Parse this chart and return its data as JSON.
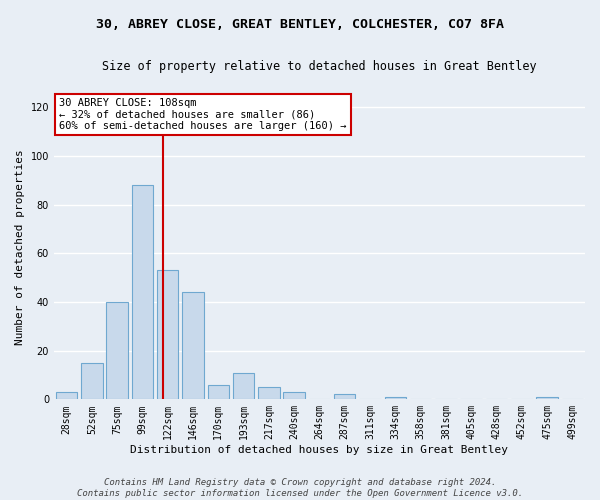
{
  "title1": "30, ABREY CLOSE, GREAT BENTLEY, COLCHESTER, CO7 8FA",
  "title2": "Size of property relative to detached houses in Great Bentley",
  "xlabel": "Distribution of detached houses by size in Great Bentley",
  "ylabel": "Number of detached properties",
  "bins": [
    "28sqm",
    "52sqm",
    "75sqm",
    "99sqm",
    "122sqm",
    "146sqm",
    "170sqm",
    "193sqm",
    "217sqm",
    "240sqm",
    "264sqm",
    "287sqm",
    "311sqm",
    "334sqm",
    "358sqm",
    "381sqm",
    "405sqm",
    "428sqm",
    "452sqm",
    "475sqm",
    "499sqm"
  ],
  "values": [
    3,
    15,
    40,
    88,
    53,
    44,
    6,
    11,
    5,
    3,
    0,
    2,
    0,
    1,
    0,
    0,
    0,
    0,
    0,
    1,
    0
  ],
  "bar_color": "#c8d9eb",
  "bar_edge_color": "#6fa8d0",
  "vline_x_index": 3.83,
  "vline_color": "#cc0000",
  "annotation_text": "30 ABREY CLOSE: 108sqm\n← 32% of detached houses are smaller (86)\n60% of semi-detached houses are larger (160) →",
  "annotation_box_color": "#ffffff",
  "annotation_box_edge": "#cc0000",
  "ylim": [
    0,
    125
  ],
  "yticks": [
    0,
    20,
    40,
    60,
    80,
    100,
    120
  ],
  "background_color": "#e8eef5",
  "grid_color": "#ffffff",
  "footer_line1": "Contains HM Land Registry data © Crown copyright and database right 2024.",
  "footer_line2": "Contains public sector information licensed under the Open Government Licence v3.0.",
  "title1_fontsize": 9.5,
  "title2_fontsize": 8.5,
  "xlabel_fontsize": 8,
  "ylabel_fontsize": 8,
  "tick_fontsize": 7,
  "footer_fontsize": 6.5,
  "annotation_fontsize": 7.5
}
